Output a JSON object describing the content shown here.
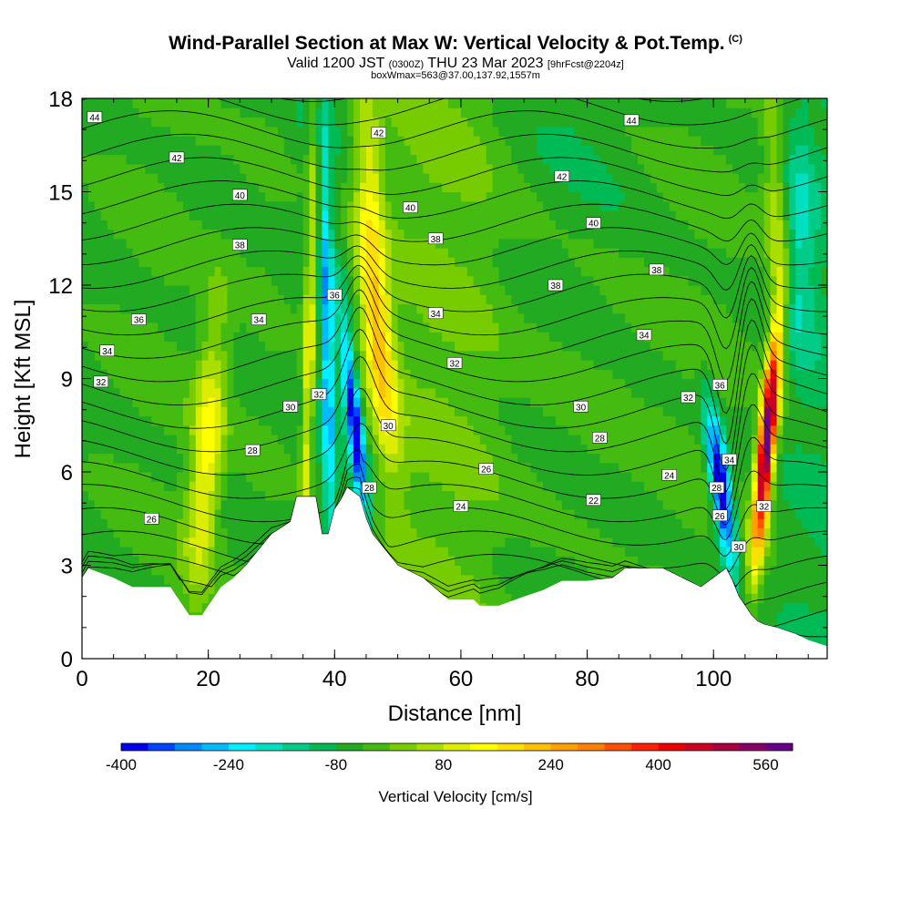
{
  "title": {
    "main": "Wind-Parallel Section at Max W: Vertical Velocity & Pot.Temp.",
    "copyright": "(C)",
    "valid_prefix": "Valid 1200 JST",
    "valid_utc": "(0300Z)",
    "valid_date": "THU 23 Mar 2023",
    "forecast": "[9hrFcst@2204z]",
    "boxinfo": "boxWmax=563@37.00,137.92,1557m"
  },
  "chart_data": {
    "type": "contour",
    "xlabel": "Distance [nm]",
    "ylabel": "Height [Kft MSL]",
    "xlim": [
      0,
      118
    ],
    "ylim": [
      0,
      18
    ],
    "xticks": [
      0,
      20,
      40,
      60,
      80,
      100
    ],
    "yticks": [
      0,
      3,
      6,
      9,
      12,
      15,
      18
    ],
    "terrain": [
      [
        0,
        2.6
      ],
      [
        1,
        2.9
      ],
      [
        5,
        2.6
      ],
      [
        8,
        2.3
      ],
      [
        14,
        2.3
      ],
      [
        15,
        2.0
      ],
      [
        17,
        1.4
      ],
      [
        19,
        1.4
      ],
      [
        20,
        1.7
      ],
      [
        22,
        2.3
      ],
      [
        24,
        2.6
      ],
      [
        26,
        3.0
      ],
      [
        28,
        3.5
      ],
      [
        30,
        4.0
      ],
      [
        33,
        4.4
      ],
      [
        34,
        5.2
      ],
      [
        37,
        5.2
      ],
      [
        38,
        4.0
      ],
      [
        39,
        4.0
      ],
      [
        40,
        4.8
      ],
      [
        41,
        5.1
      ],
      [
        42,
        5.5
      ],
      [
        44,
        5.2
      ],
      [
        45,
        4.5
      ],
      [
        46,
        4.0
      ],
      [
        48,
        3.5
      ],
      [
        50,
        3.0
      ],
      [
        54,
        2.6
      ],
      [
        58,
        1.9
      ],
      [
        62,
        1.9
      ],
      [
        63,
        1.7
      ],
      [
        66,
        1.7
      ],
      [
        70,
        2.0
      ],
      [
        73,
        2.2
      ],
      [
        76,
        2.5
      ],
      [
        80,
        2.5
      ],
      [
        84,
        2.6
      ],
      [
        86,
        2.9
      ],
      [
        92,
        2.9
      ],
      [
        96,
        2.5
      ],
      [
        98,
        2.3
      ],
      [
        100,
        2.6
      ],
      [
        102,
        2.9
      ],
      [
        103,
        2.5
      ],
      [
        104,
        2.0
      ],
      [
        105,
        1.7
      ],
      [
        106,
        1.4
      ],
      [
        107,
        1.2
      ],
      [
        108,
        1.1
      ],
      [
        110,
        1.0
      ],
      [
        113,
        0.8
      ],
      [
        115,
        0.6
      ],
      [
        118,
        0.4
      ]
    ],
    "vertical_velocity_features": [
      {
        "center_x": 19,
        "center_y": 6.5,
        "peak_cm_s": 140,
        "sign": "up"
      },
      {
        "center_x": 36.5,
        "center_y": 10,
        "peak_cm_s": 140,
        "sign": "up"
      },
      {
        "center_x": 39.5,
        "center_y": 10,
        "peak_cm_s": -180,
        "sign": "down"
      },
      {
        "center_x": 43.5,
        "center_y": 7.5,
        "peak_cm_s": -360,
        "sign": "down"
      },
      {
        "center_x": 48,
        "center_y": 10.5,
        "peak_cm_s": 240,
        "sign": "up"
      },
      {
        "center_x": 102,
        "center_y": 5.5,
        "peak_cm_s": -400,
        "sign": "down"
      },
      {
        "center_x": 108,
        "center_y": 7,
        "peak_cm_s": 560,
        "sign": "up"
      }
    ],
    "isentrope_labels": [
      {
        "text": "44",
        "x": 2,
        "y": 17.4
      },
      {
        "text": "42",
        "x": 15,
        "y": 16.1
      },
      {
        "text": "40",
        "x": 25,
        "y": 14.9
      },
      {
        "text": "38",
        "x": 25,
        "y": 13.3
      },
      {
        "text": "36",
        "x": 9,
        "y": 10.9
      },
      {
        "text": "34",
        "x": 4,
        "y": 9.9
      },
      {
        "text": "32",
        "x": 3,
        "y": 8.9
      },
      {
        "text": "34",
        "x": 28,
        "y": 10.9
      },
      {
        "text": "30",
        "x": 33,
        "y": 8.1
      },
      {
        "text": "32",
        "x": 37.5,
        "y": 8.5
      },
      {
        "text": "36",
        "x": 40,
        "y": 11.7
      },
      {
        "text": "28",
        "x": 27,
        "y": 6.7
      },
      {
        "text": "26",
        "x": 11,
        "y": 4.5
      },
      {
        "text": "42",
        "x": 47,
        "y": 16.9
      },
      {
        "text": "40",
        "x": 52,
        "y": 14.5
      },
      {
        "text": "38",
        "x": 56,
        "y": 13.5
      },
      {
        "text": "34",
        "x": 56,
        "y": 11.1
      },
      {
        "text": "32",
        "x": 59,
        "y": 9.5
      },
      {
        "text": "30",
        "x": 48.5,
        "y": 7.5
      },
      {
        "text": "28",
        "x": 45.5,
        "y": 5.5
      },
      {
        "text": "26",
        "x": 64,
        "y": 6.1
      },
      {
        "text": "24",
        "x": 60,
        "y": 4.9
      },
      {
        "text": "44",
        "x": 87,
        "y": 17.3
      },
      {
        "text": "42",
        "x": 76,
        "y": 15.5
      },
      {
        "text": "40",
        "x": 81,
        "y": 14.0
      },
      {
        "text": "38",
        "x": 75,
        "y": 12.0
      },
      {
        "text": "38",
        "x": 91,
        "y": 12.5
      },
      {
        "text": "34",
        "x": 89,
        "y": 10.4
      },
      {
        "text": "30",
        "x": 79,
        "y": 8.1
      },
      {
        "text": "28",
        "x": 82,
        "y": 7.1
      },
      {
        "text": "22",
        "x": 81,
        "y": 5.1
      },
      {
        "text": "24",
        "x": 93,
        "y": 5.9
      },
      {
        "text": "32",
        "x": 96,
        "y": 8.4
      },
      {
        "text": "36",
        "x": 101,
        "y": 8.8
      },
      {
        "text": "34",
        "x": 102.5,
        "y": 6.4
      },
      {
        "text": "28",
        "x": 100.5,
        "y": 5.5
      },
      {
        "text": "26",
        "x": 101,
        "y": 4.6
      },
      {
        "text": "30",
        "x": 104,
        "y": 3.6
      },
      {
        "text": "32",
        "x": 108,
        "y": 4.9
      }
    ],
    "colorbar": {
      "label": "Vertical Velocity [cm/s]",
      "min": -400,
      "max": 600,
      "step": 40,
      "tick_values": [
        -400,
        -240,
        -80,
        80,
        240,
        400,
        560
      ],
      "tick_labels": [
        "-400",
        "-240",
        "-80",
        "80",
        "240",
        "400",
        "560"
      ],
      "colors": [
        "#0000ee",
        "#0044ff",
        "#0088ff",
        "#00bbff",
        "#00eeff",
        "#00e0c0",
        "#00cc88",
        "#00bb55",
        "#22aa22",
        "#44bb11",
        "#77cc00",
        "#aadd00",
        "#dded00",
        "#ffff00",
        "#ffe000",
        "#ffc000",
        "#ffa000",
        "#ff8000",
        "#ff5000",
        "#ff2000",
        "#ee0000",
        "#cc0022",
        "#aa0044",
        "#880066",
        "#660088"
      ]
    }
  }
}
